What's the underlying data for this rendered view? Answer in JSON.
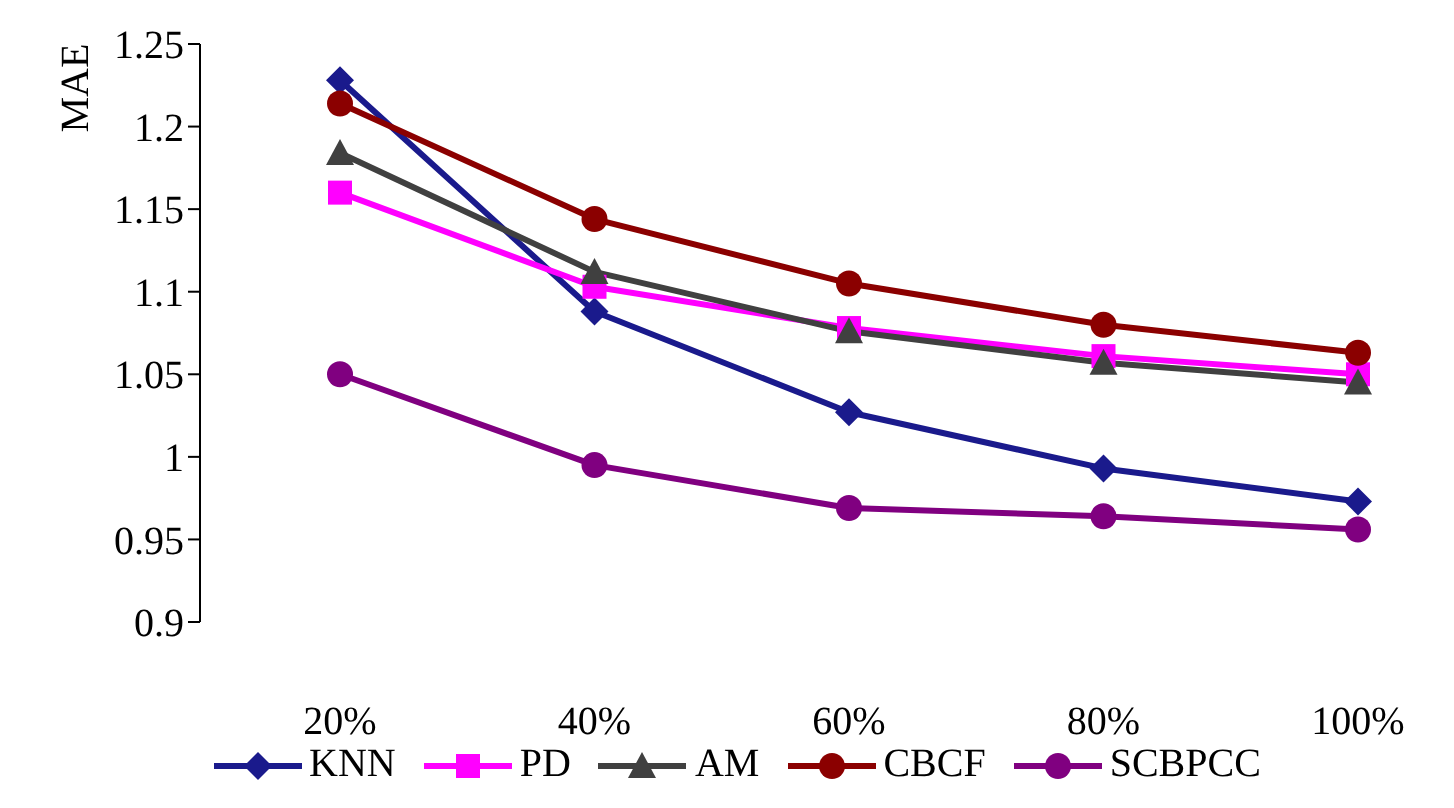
{
  "chart_data": {
    "type": "line",
    "ylabel": "MAE",
    "categories": [
      "20%",
      "40%",
      "60%",
      "80%",
      "100%"
    ],
    "ylim": [
      0.9,
      1.25
    ],
    "yticks": [
      0.9,
      0.95,
      {
        "value": 1,
        "label": "1"
      },
      1.05,
      {
        "value": 1.1,
        "label": "1.1"
      },
      1.15,
      {
        "value": 1.2,
        "label": "1.2"
      },
      1.25
    ],
    "grid": false,
    "legend": "bottom",
    "line_style": "solid",
    "series": [
      {
        "name": "KNN",
        "color": "#1a1a8c",
        "marker": "diamond",
        "values": [
          1.228,
          1.088,
          1.027,
          0.993,
          0.973
        ]
      },
      {
        "name": "PD",
        "color": "#ff00ff",
        "marker": "square",
        "values": [
          1.16,
          1.103,
          1.078,
          1.061,
          1.05
        ]
      },
      {
        "name": "AM",
        "color": "#404040",
        "marker": "triangle",
        "values": [
          1.184,
          1.112,
          1.076,
          1.057,
          1.045
        ]
      },
      {
        "name": "CBCF",
        "color": "#8b0000",
        "marker": "circle",
        "values": [
          1.214,
          1.144,
          1.105,
          1.08,
          1.063
        ]
      },
      {
        "name": "SCBPCC",
        "color": "#800080",
        "marker": "circle",
        "values": [
          1.05,
          0.995,
          0.969,
          0.964,
          0.956
        ]
      }
    ]
  }
}
